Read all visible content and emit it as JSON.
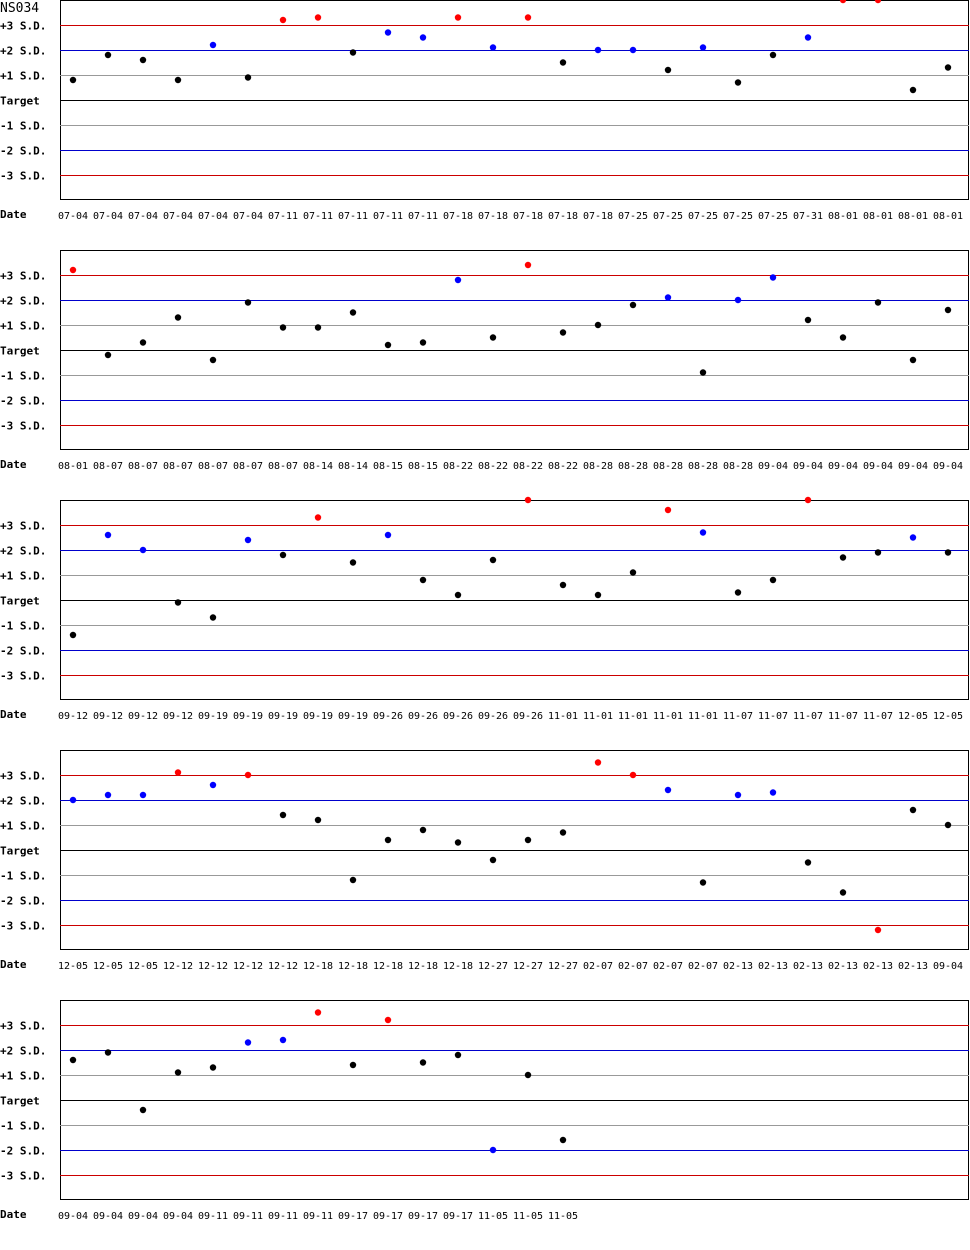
{
  "chart_data": {
    "type": "scatter",
    "title": "NS034",
    "x_label": "Date",
    "y_tick_labels": [
      "+3 S.D.",
      "+2 S.D.",
      "+1 S.D.",
      "Target",
      "-1 S.D.",
      "-2 S.D.",
      "-3 S.D."
    ],
    "ylim": [
      -4,
      4
    ],
    "grid": "horizontal lines at each S.D. level",
    "colors": {
      "sd3_line": "#cc0000",
      "sd2_line": "#0000cc",
      "sd1_line": "#999999",
      "target_line": "#000000",
      "point_normal": "#000000",
      "point_sd2": "#0000ff",
      "point_sd3": "#ff0000"
    },
    "panels": [
      {
        "dates": [
          "07-04",
          "07-04",
          "07-04",
          "07-04",
          "07-04",
          "07-04",
          "07-11",
          "07-11",
          "07-11",
          "07-11",
          "07-11",
          "07-18",
          "07-18",
          "07-18",
          "07-18",
          "07-18",
          "07-25",
          "07-25",
          "07-25",
          "07-25",
          "07-25",
          "07-31",
          "08-01",
          "08-01",
          "08-01",
          "08-01"
        ],
        "values": [
          0.8,
          1.8,
          1.6,
          0.8,
          2.2,
          0.9,
          3.2,
          3.3,
          1.9,
          2.7,
          2.5,
          3.3,
          2.1,
          3.3,
          1.5,
          2.0,
          2.0,
          1.2,
          2.1,
          0.7,
          1.8,
          2.5,
          4.0,
          4.0,
          0.4,
          1.3
        ]
      },
      {
        "dates": [
          "08-01",
          "08-07",
          "08-07",
          "08-07",
          "08-07",
          "08-07",
          "08-07",
          "08-14",
          "08-14",
          "08-15",
          "08-15",
          "08-22",
          "08-22",
          "08-22",
          "08-22",
          "08-28",
          "08-28",
          "08-28",
          "08-28",
          "08-28",
          "09-04",
          "09-04",
          "09-04",
          "09-04",
          "09-04",
          "09-04"
        ],
        "values": [
          3.2,
          -0.2,
          0.3,
          1.3,
          -0.4,
          1.9,
          0.9,
          0.9,
          1.5,
          0.2,
          0.3,
          2.8,
          0.5,
          3.4,
          0.7,
          1.0,
          1.8,
          2.1,
          -0.9,
          2.0,
          2.9,
          1.2,
          0.5,
          1.9,
          -0.4,
          1.6
        ]
      },
      {
        "dates": [
          "09-12",
          "09-12",
          "09-12",
          "09-12",
          "09-19",
          "09-19",
          "09-19",
          "09-19",
          "09-19",
          "09-26",
          "09-26",
          "09-26",
          "09-26",
          "09-26",
          "11-01",
          "11-01",
          "11-01",
          "11-01",
          "11-01",
          "11-07",
          "11-07",
          "11-07",
          "11-07",
          "11-07",
          "12-05",
          "12-05"
        ],
        "values": [
          -1.4,
          2.6,
          2.0,
          -0.1,
          -0.7,
          2.4,
          1.8,
          3.3,
          1.5,
          2.6,
          0.8,
          0.2,
          1.6,
          4.0,
          0.6,
          0.2,
          1.1,
          3.6,
          2.7,
          0.3,
          0.8,
          4.0,
          1.7,
          1.9,
          2.5,
          1.9
        ]
      },
      {
        "dates": [
          "12-05",
          "12-05",
          "12-05",
          "12-12",
          "12-12",
          "12-12",
          "12-12",
          "12-18",
          "12-18",
          "12-18",
          "12-18",
          "12-18",
          "12-27",
          "12-27",
          "12-27",
          "02-07",
          "02-07",
          "02-07",
          "02-07",
          "02-13",
          "02-13",
          "02-13",
          "02-13",
          "02-13",
          "02-13",
          "09-04"
        ],
        "values": [
          2.0,
          2.2,
          2.2,
          3.1,
          2.6,
          3.0,
          1.4,
          1.2,
          -1.2,
          0.4,
          0.8,
          0.3,
          -0.4,
          0.4,
          0.7,
          3.5,
          3.0,
          2.4,
          -1.3,
          2.2,
          2.3,
          -0.5,
          -1.7,
          -3.2,
          1.6,
          1.0
        ]
      },
      {
        "dates": [
          "09-04",
          "09-04",
          "09-04",
          "09-04",
          "09-11",
          "09-11",
          "09-11",
          "09-11",
          "09-17",
          "09-17",
          "09-17",
          "09-17",
          "11-05",
          "11-05",
          "11-05"
        ],
        "values": [
          1.6,
          1.9,
          -0.4,
          1.1,
          1.3,
          2.3,
          2.4,
          3.5,
          1.4,
          3.2,
          1.5,
          1.8,
          -2.0,
          1.0,
          -1.6
        ]
      }
    ]
  }
}
